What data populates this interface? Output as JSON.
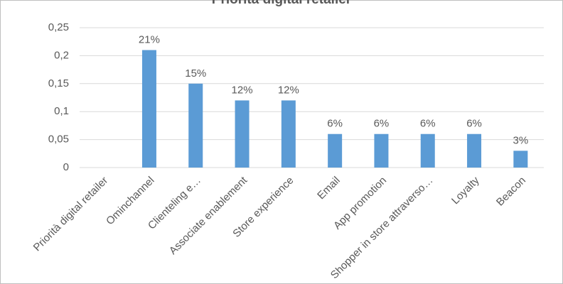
{
  "chart_data": {
    "type": "bar",
    "title": "Priorità digital retailer",
    "categories": [
      "Priorità digital retailer",
      "Ominchannel",
      "Clienteling e…",
      "Associate enablement",
      "Store experience",
      "Email",
      "App promotion",
      "Shopper in store attraverso…",
      "Loyalty",
      "Beacon"
    ],
    "values": [
      null,
      0.21,
      0.15,
      0.12,
      0.12,
      0.06,
      0.06,
      0.06,
      0.06,
      0.03
    ],
    "value_labels": [
      null,
      "21%",
      "15%",
      "12%",
      "12%",
      "6%",
      "6%",
      "6%",
      "6%",
      "3%"
    ],
    "color": "#5b9bd5",
    "ylim": [
      0,
      0.25
    ],
    "yticks": [
      0,
      {
        "value": 0.05,
        "label": "0,05"
      },
      {
        "value": 0.1,
        "label": "0,1"
      },
      {
        "value": 0.15,
        "label": "0,15"
      },
      {
        "value": 0.2,
        "label": "0,2"
      },
      {
        "value": 0.25,
        "label": "0,25"
      }
    ],
    "grid": true
  }
}
